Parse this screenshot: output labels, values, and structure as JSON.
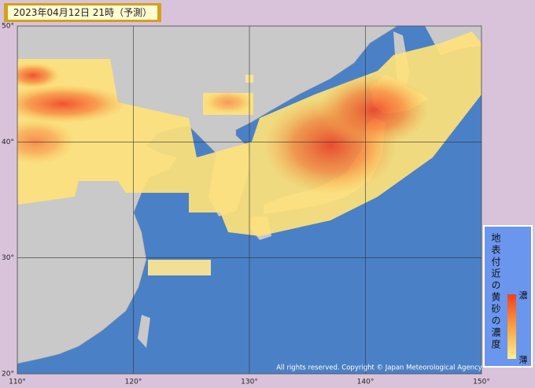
{
  "header": {
    "title": "2023年04月12日 21時（予測）"
  },
  "map": {
    "lat_ticks": [
      {
        "value": 50,
        "label": "50°"
      },
      {
        "value": 40,
        "label": "40°"
      },
      {
        "value": 30,
        "label": "30°"
      },
      {
        "value": 20,
        "label": "20°"
      }
    ],
    "lon_ticks": [
      {
        "value": 110,
        "label": "110°"
      },
      {
        "value": 120,
        "label": "120°"
      },
      {
        "value": 130,
        "label": "130°"
      },
      {
        "value": 140,
        "label": "140°"
      },
      {
        "value": 150,
        "label": "150°"
      }
    ]
  },
  "legend": {
    "title": "地表付近の黄砂の濃度",
    "high": "濃",
    "low": "薄"
  },
  "footer": {
    "copyright": "All rights reserved. Copyright © Japan Meteorological Agency"
  }
}
